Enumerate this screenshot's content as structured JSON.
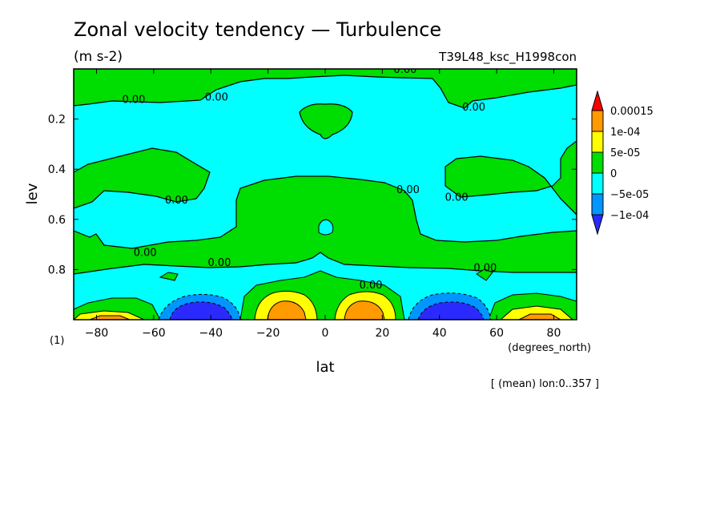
{
  "chart_data": {
    "type": "contour",
    "title": "Zonal velocity tendency — Turbulence",
    "units_label": "(m s-2)",
    "experiment": "T39L48_ksc_H1998con",
    "xlabel": "lat",
    "xunits": "(degrees_north)",
    "ylabel": "lev",
    "yunits": "(1)",
    "footnote": "[ (mean) lon:0..357 ]",
    "xlim": [
      -88,
      88
    ],
    "ylim": [
      1.0,
      0.0
    ],
    "y_inverted": true,
    "x_ticks": [
      -80,
      -60,
      -40,
      -20,
      0,
      20,
      40,
      60,
      80
    ],
    "x_tick_labels": [
      "−80",
      "−60",
      "−40",
      "−20",
      "0",
      "20",
      "40",
      "60",
      "80"
    ],
    "y_ticks": [
      0.2,
      0.4,
      0.6,
      0.8
    ],
    "y_tick_labels": [
      "0.2",
      "0.4",
      "0.6",
      "0.8"
    ],
    "contour_labels": [
      {
        "text": "0.00",
        "lat": 28,
        "lev": 0.0
      },
      {
        "text": "0.00",
        "lat": -67,
        "lev": 0.12
      },
      {
        "text": "0.00",
        "lat": -38,
        "lev": 0.11
      },
      {
        "text": "0.00",
        "lat": 52,
        "lev": 0.15
      },
      {
        "text": "0.00",
        "lat": -52,
        "lev": 0.52
      },
      {
        "text": "0.00",
        "lat": 29,
        "lev": 0.48
      },
      {
        "text": "0.00",
        "lat": 46,
        "lev": 0.51
      },
      {
        "text": "0.00",
        "lat": -63,
        "lev": 0.73
      },
      {
        "text": "0.00",
        "lat": -37,
        "lev": 0.77
      },
      {
        "text": "0.00",
        "lat": 56,
        "lev": 0.79
      },
      {
        "text": "0.00",
        "lat": 16,
        "lev": 0.86
      }
    ],
    "legend": {
      "levels": [
        "0.00015",
        "1e-04",
        "5e-05",
        "0",
        "−5e-05",
        "−1e-04"
      ],
      "colors": [
        "#ff0000",
        "#ff9a00",
        "#ffff00",
        "#00dd00",
        "#00ffff",
        "#0096ff",
        "#2a2aff"
      ]
    },
    "colors": {
      "background": "#00ffff",
      "positive_weak": "#00dd00",
      "positive_mid": "#ffff00",
      "positive_strong": "#ff9a00",
      "negative_mid": "#0096ff",
      "negative_strong": "#2a2aff"
    }
  }
}
